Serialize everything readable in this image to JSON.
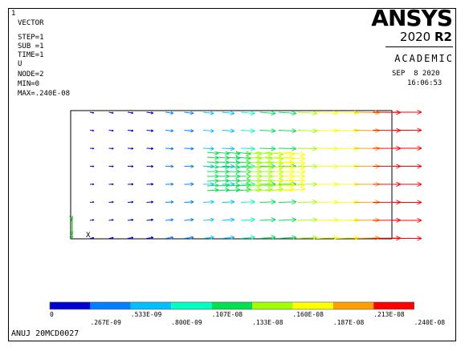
{
  "window_number": "1",
  "info_lines": [
    "VECTOR",
    "STEP=1",
    "SUB =1",
    "TIME=1",
    "U",
    "NODE=2",
    "MIN=0",
    "MAX=.240E-08"
  ],
  "logo": {
    "brand": "ANSYS",
    "version_prefix": "2020 ",
    "version_suffix": "R2",
    "edition": "ACADEMIC"
  },
  "date": "SEP  8 2020",
  "time": "16:06:53",
  "triad": {
    "y_label": "Y",
    "z_label": "Z",
    "x_label": "X"
  },
  "legend": {
    "colors": [
      "#0000d0",
      "#0080ff",
      "#00c0ff",
      "#00ffc0",
      "#00e050",
      "#a0ff00",
      "#ffff00",
      "#ffa000",
      "#ff0000"
    ],
    "top_labels": [
      "0",
      ".533E-09",
      ".107E-08",
      ".160E-08",
      ".213E-08"
    ],
    "bottom_labels": [
      ".267E-09",
      ".800E-09",
      ".133E-08",
      ".187E-08",
      ".240E-08"
    ]
  },
  "footer_text": "ANUJ 20MCD0027"
}
